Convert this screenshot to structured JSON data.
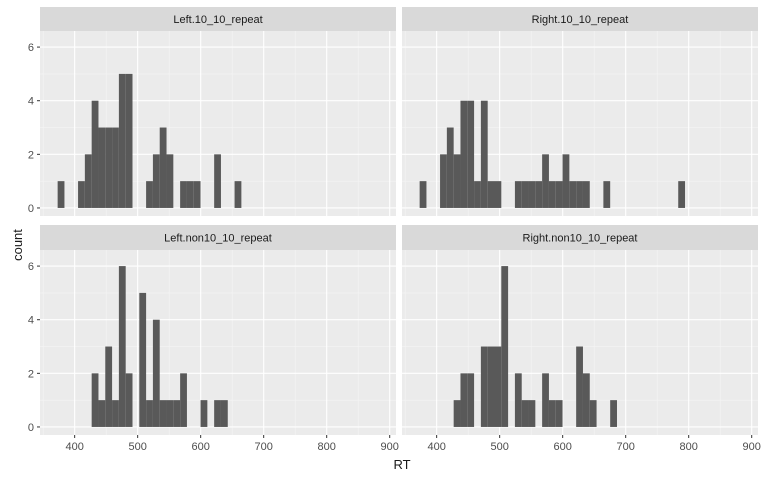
{
  "chart_data": {
    "type": "histogram",
    "xlabel": "RT",
    "ylabel": "count",
    "xlim": [
      345,
      910
    ],
    "ylim": [
      -0.3,
      6.6
    ],
    "x_ticks": [
      400,
      500,
      600,
      700,
      800,
      900
    ],
    "y_ticks": [
      0,
      2,
      4,
      6
    ],
    "bin_width": 10.8,
    "grid": true,
    "colors": {
      "bar": "#595959",
      "panel_bg": "#ebebeb",
      "strip_bg": "#d9d9d9",
      "grid_major": "#ffffff",
      "text": "#1a1a1a",
      "tick_text": "#4d4d4d"
    },
    "panels": [
      {
        "title": "Left.10_10_repeat",
        "x_start": 373,
        "counts": [
          1,
          0,
          0,
          1,
          2,
          4,
          3,
          3,
          3,
          5,
          5,
          0,
          0,
          1,
          2,
          3,
          2,
          0,
          1,
          1,
          1,
          0,
          0,
          2,
          0,
          0,
          1
        ]
      },
      {
        "title": "Right.10_10_repeat",
        "x_start": 373,
        "counts": [
          1,
          0,
          0,
          2,
          3,
          2,
          4,
          4,
          1,
          4,
          1,
          1,
          0,
          0,
          1,
          1,
          1,
          1,
          2,
          1,
          1,
          2,
          1,
          1,
          1,
          0,
          0,
          1,
          0,
          0,
          0,
          0,
          0,
          0,
          0,
          0,
          0,
          0,
          1
        ]
      },
      {
        "title": "Left.non10_10_repeat",
        "x_start": 427,
        "counts": [
          2,
          1,
          3,
          1,
          6,
          2,
          0,
          5,
          1,
          4,
          1,
          1,
          1,
          2,
          0,
          0,
          1,
          0,
          1,
          1
        ]
      },
      {
        "title": "Right.non10_10_repeat",
        "x_start": 427,
        "counts": [
          1,
          2,
          2,
          0,
          3,
          3,
          3,
          6,
          0,
          2,
          1,
          1,
          0,
          2,
          1,
          1,
          0,
          0,
          3,
          2,
          1,
          0,
          0,
          1
        ]
      }
    ]
  }
}
